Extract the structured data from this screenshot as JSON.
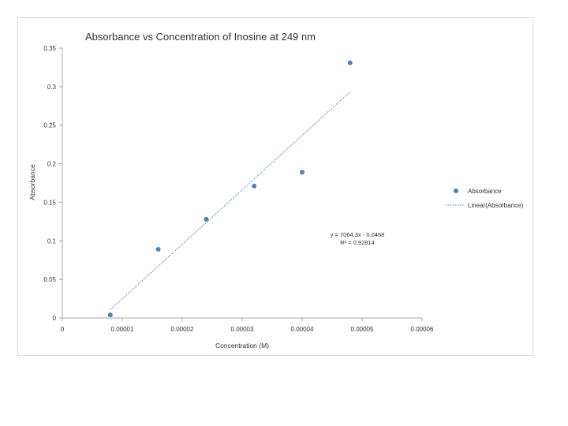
{
  "chart_data": {
    "type": "scatter",
    "title": "Absorbance vs Concentration of Inosine at 249 nm",
    "xlabel": "Concentration (M)",
    "ylabel": "Absorbance",
    "xlim": [
      0,
      6e-05
    ],
    "ylim": [
      0,
      0.35
    ],
    "x_ticks": [
      "0",
      "0.00001",
      "0.00002",
      "0.00003",
      "0.00004",
      "0.00005",
      "0.00006"
    ],
    "y_ticks": [
      "0",
      "0.05",
      "0.1",
      "0.15",
      "0.2",
      "0.25",
      "0.3",
      "0.35"
    ],
    "series": [
      {
        "name": "Absorbance",
        "color": "#4f81bd",
        "x": [
          8e-06,
          1.6e-05,
          2.4e-05,
          3.2e-05,
          4e-05,
          4.8e-05
        ],
        "y": [
          0.004,
          0.089,
          0.128,
          0.171,
          0.189,
          0.331
        ]
      }
    ],
    "trendline": {
      "name": "Linear(Absorbance)",
      "type": "linear",
      "slope": 7064.3,
      "intercept": -0.0458,
      "x_range": [
        8e-06,
        4.8e-05
      ],
      "equation": "y = 7064.3x - 0.0458",
      "r_squared": "R² = 0.92814"
    },
    "legend": "right",
    "grid": false
  }
}
